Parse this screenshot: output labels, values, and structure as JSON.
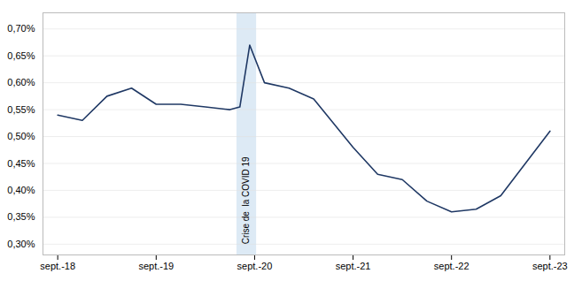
{
  "chart_data": {
    "type": "line",
    "x": [
      0,
      0.25,
      0.5,
      0.75,
      1.0,
      1.25,
      1.5,
      1.75,
      1.85,
      1.95,
      2.1,
      2.35,
      2.6,
      3.0,
      3.25,
      3.5,
      3.75,
      4.0,
      4.25,
      4.5,
      4.75,
      5.0
    ],
    "values": [
      0.0054,
      0.0053,
      0.00575,
      0.0059,
      0.0056,
      0.0056,
      0.00555,
      0.0055,
      0.00555,
      0.0067,
      0.006,
      0.0059,
      0.0057,
      0.0048,
      0.0043,
      0.0042,
      0.0038,
      0.0036,
      0.00365,
      0.0039,
      0.0045,
      0.0051
    ],
    "color": "#1f3864",
    "xlim": [
      -0.15,
      5.15
    ],
    "xticks": [
      {
        "value": 0,
        "label": "sept.-18"
      },
      {
        "value": 1,
        "label": "sept.-19"
      },
      {
        "value": 2,
        "label": "sept.-20"
      },
      {
        "value": 3,
        "label": "sept.-21"
      },
      {
        "value": 4,
        "label": "sept.-22"
      },
      {
        "value": 5,
        "label": "sept.-23"
      }
    ],
    "ylim": [
      0.0028,
      0.0073
    ],
    "yticks": [
      {
        "value": 0.003,
        "label": "0,30%"
      },
      {
        "value": 0.0035,
        "label": "0,35%"
      },
      {
        "value": 0.004,
        "label": "0,40%"
      },
      {
        "value": 0.0045,
        "label": "0,45%"
      },
      {
        "value": 0.005,
        "label": "0,50%"
      },
      {
        "value": 0.0055,
        "label": "0,55%"
      },
      {
        "value": 0.006,
        "label": "0,60%"
      },
      {
        "value": 0.0065,
        "label": "0,65%"
      },
      {
        "value": 0.007,
        "label": "0,70%"
      }
    ],
    "grid": true,
    "annotations": [
      {
        "text": "Crise de  la COVID 19",
        "x": 1.91,
        "y": 0.003,
        "x_start": 1.82,
        "x_end": 2.02,
        "color": "#ddeaf5"
      }
    ]
  }
}
